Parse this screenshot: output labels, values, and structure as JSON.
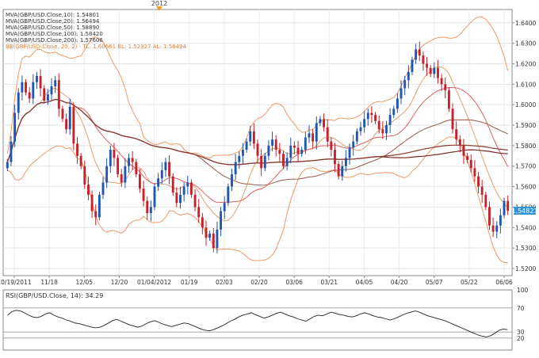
{
  "chart_data": [
    {
      "type": "candlestick",
      "instrument": "GBP/USD",
      "top_marker": "2012",
      "x_tick_labels": [
        "10/19/2011",
        "11/18",
        "12/05",
        "12/20",
        "01/04/2012",
        "01/19",
        "02/03",
        "02/20",
        "03/06",
        "03/21",
        "04/05",
        "04/20",
        "05/07",
        "05/22",
        "06/06"
      ],
      "y_tick_labels": [
        "1.5200",
        "1.5300",
        "1.5400",
        "1.5500",
        "1.5600",
        "1.5700",
        "1.5800",
        "1.5900",
        "1.6000",
        "1.6100",
        "1.6200",
        "1.6300",
        "1.6400"
      ],
      "ylim": [
        1.5165,
        1.6465
      ],
      "last_price_label": "1.54821",
      "last_price": 1.54821,
      "legend": [
        {
          "text": "MVA(GBP/USD.Close,10): 1.54801",
          "color": "#e0a070",
          "series": "mva10"
        },
        {
          "text": "MVA(GBP/USD.Close,20): 1.56494",
          "color": "#e06060",
          "series": "mva20"
        },
        {
          "text": "MVA(GBP/USD.Close,50): 1.58890",
          "color": "#9a5a4a",
          "series": "mva50"
        },
        {
          "text": "MVA(GBP/USD.Close,100): 1.58420",
          "color": "#7a2a22",
          "series": "mva100"
        },
        {
          "text": "MVA(GBP/USD.Close,200): 1.57606",
          "color": "#8a3a30",
          "series": "mva200"
        },
        {
          "text": "BB(GBP/USD.Close, 20, 2) - TL: 1.60661  BL: 1.52327  AL: 1.56494",
          "color": "#ee9966",
          "series": "bb"
        }
      ],
      "closes": [
        1.572,
        1.582,
        1.596,
        1.606,
        1.611,
        1.606,
        1.603,
        1.611,
        1.614,
        1.608,
        1.602,
        1.605,
        1.609,
        1.612,
        1.598,
        1.593,
        1.588,
        1.599,
        1.581,
        1.575,
        1.57,
        1.561,
        1.556,
        1.548,
        1.545,
        1.556,
        1.562,
        1.57,
        1.578,
        1.574,
        1.566,
        1.562,
        1.57,
        1.574,
        1.572,
        1.566,
        1.559,
        1.553,
        1.547,
        1.55,
        1.56,
        1.564,
        1.568,
        1.572,
        1.565,
        1.557,
        1.552,
        1.556,
        1.56,
        1.562,
        1.556,
        1.55,
        1.545,
        1.54,
        1.535,
        1.537,
        1.53,
        1.539,
        1.548,
        1.552,
        1.56,
        1.566,
        1.572,
        1.575,
        1.578,
        1.582,
        1.587,
        1.581,
        1.575,
        1.569,
        1.575,
        1.58,
        1.583,
        1.578,
        1.576,
        1.57,
        1.574,
        1.58,
        1.579,
        1.576,
        1.578,
        1.584,
        1.586,
        1.582,
        1.591,
        1.593,
        1.589,
        1.582,
        1.578,
        1.571,
        1.565,
        1.57,
        1.574,
        1.579,
        1.582,
        1.587,
        1.589,
        1.593,
        1.596,
        1.595,
        1.592,
        1.588,
        1.586,
        1.59,
        1.595,
        1.598,
        1.603,
        1.608,
        1.612,
        1.616,
        1.622,
        1.627,
        1.624,
        1.62,
        1.618,
        1.615,
        1.618,
        1.613,
        1.61,
        1.607,
        1.598,
        1.588,
        1.583,
        1.58,
        1.575,
        1.573,
        1.569,
        1.565,
        1.56,
        1.556,
        1.55,
        1.541,
        1.538,
        1.541,
        1.546,
        1.553,
        1.54821
      ],
      "rsi": {
        "label": "RSI(GBP/USD.Close, 14): 34.29",
        "ylim": [
          0,
          100
        ],
        "levels": [
          20,
          30,
          70
        ],
        "y_tick_labels": [
          "20",
          "30",
          "70",
          "100"
        ],
        "values": [
          58,
          64,
          66,
          65,
          62,
          58,
          55,
          54,
          56,
          60,
          62,
          58,
          55,
          53,
          50,
          48,
          45,
          44,
          42,
          40,
          38,
          37,
          38,
          41,
          45,
          49,
          51,
          48,
          45,
          42,
          40,
          38,
          40,
          44,
          47,
          49,
          46,
          43,
          41,
          39,
          41,
          43,
          45,
          44,
          41,
          38,
          35,
          33,
          32,
          34,
          37,
          40,
          44,
          48,
          51,
          55,
          58,
          60,
          62,
          59,
          56,
          53,
          55,
          58,
          61,
          63,
          60,
          57,
          55,
          52,
          50,
          48,
          52,
          56,
          58,
          57,
          60,
          63,
          61,
          59,
          58,
          56,
          55,
          57,
          60,
          62,
          60,
          57,
          55,
          54,
          52,
          50,
          52,
          55,
          58,
          61,
          63,
          65,
          63,
          60,
          57,
          55,
          53,
          51,
          49,
          46,
          43,
          40,
          37,
          34,
          31,
          28,
          25,
          23,
          22,
          24,
          28,
          33,
          35,
          34
        ]
      }
    }
  ]
}
